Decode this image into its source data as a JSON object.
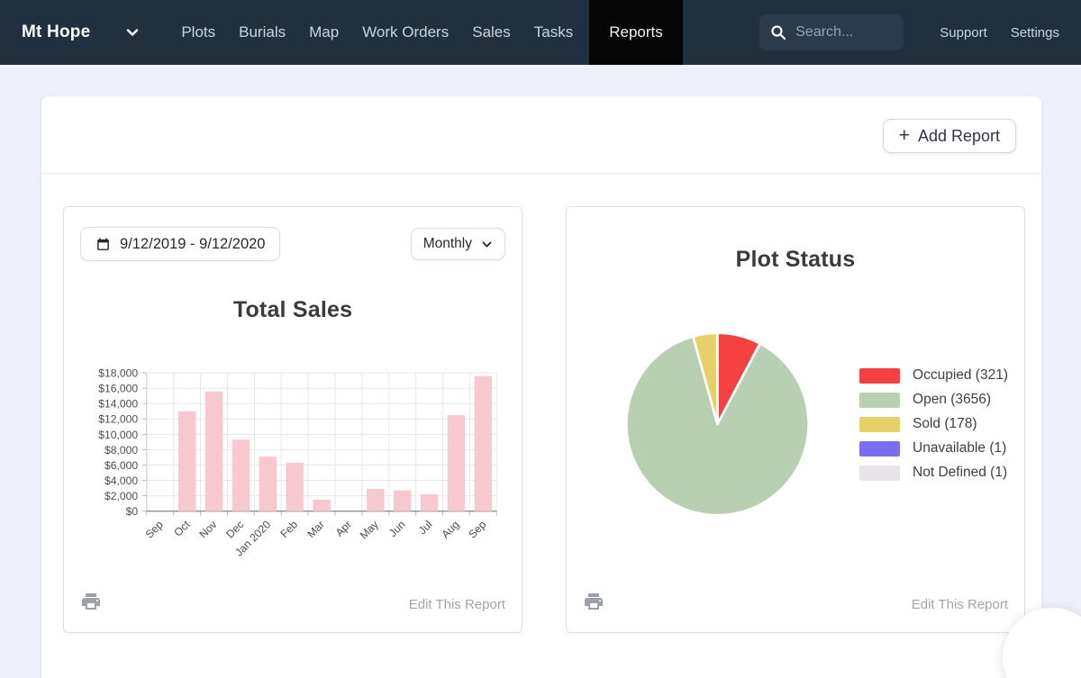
{
  "nav": {
    "brand": "Mt Hope",
    "items": [
      "Plots",
      "Burials",
      "Map",
      "Work Orders",
      "Sales",
      "Tasks",
      "Reports"
    ],
    "active_item": "Reports",
    "search_placeholder": "Search...",
    "right_items": [
      "Support",
      "Settings"
    ]
  },
  "toolbar": {
    "plus_glyph": "+",
    "add_report": "Add Report"
  },
  "sales_card": {
    "date_range": "9/12/2019 - 9/12/2020",
    "interval": "Monthly",
    "edit_label": "Edit This Report"
  },
  "status_card": {
    "edit_label": "Edit This Report"
  },
  "chart_data": [
    {
      "type": "bar",
      "title": "Total Sales",
      "categories": [
        "Sep",
        "Oct",
        "Nov",
        "Dec",
        "Jan 2020",
        "Feb",
        "Mar",
        "Apr",
        "May",
        "Jun",
        "Jul",
        "Aug",
        "Sep"
      ],
      "values": [
        0,
        13000,
        15600,
        9300,
        7100,
        6300,
        1500,
        0,
        2900,
        2700,
        2200,
        12500,
        17600
      ],
      "xlabel": "",
      "ylabel": "",
      "ylim": [
        0,
        18000
      ],
      "ytick_step": 2000,
      "ytick_format": "currency",
      "grid": true,
      "bar_color": "#f8c8d0",
      "axis_text_color": "#4d4d4d"
    },
    {
      "type": "pie",
      "title": "Plot Status",
      "labels": [
        "Occupied",
        "Open",
        "Sold",
        "Unavailable",
        "Not Defined"
      ],
      "values": [
        321,
        3656,
        178,
        1,
        1
      ],
      "colors": [
        "#f44242",
        "#b8cfb2",
        "#e6d069",
        "#7b6cf0",
        "#e9e4ea"
      ],
      "legend_position": "right",
      "legend_labels": [
        "Occupied (321)",
        "Open (3656)",
        "Sold (178)",
        "Unavailable (1)",
        "Not Defined (1)"
      ]
    }
  ],
  "colors": {
    "nav_bg": "#20303f",
    "active_tab_bg": "#050505",
    "page_bg": "#edf0f9",
    "bar_pink": "#f8c8d0",
    "pie_red": "#f44242",
    "pie_green": "#b8cfb2",
    "pie_yellow": "#e6d069",
    "pie_blue": "#7b6cf0",
    "pie_gray": "#e9e4ea"
  }
}
